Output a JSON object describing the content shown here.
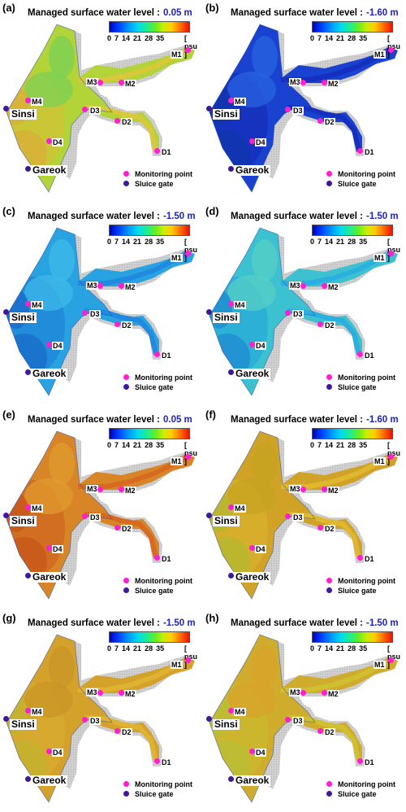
{
  "panel_title_prefix": "Managed surface water level :",
  "colorbar": {
    "ticks": [
      "0",
      "7",
      "14",
      "21",
      "28",
      "35"
    ],
    "unit": "[ psu ]",
    "colors": [
      "#0000c8",
      "#0099ff",
      "#22ee88",
      "#ccee00",
      "#ff7700",
      "#ee1100"
    ]
  },
  "labels": {
    "m1": "M1",
    "m2": "M2",
    "m3": "M3",
    "m4": "M4",
    "d1": "D1",
    "d2": "D2",
    "d3": "D3",
    "d4": "D4",
    "sinsi": "Sinsi",
    "gareok": "Gareok"
  },
  "legend": {
    "monitoring_point": "Monitoring point",
    "sluice_gate": "Sluice gate",
    "monitoring_color": "#ff1fd0",
    "sluice_color": "#3d1a9a"
  },
  "panels": [
    {
      "label": "(a)",
      "water_level": "0.05 m",
      "palette": [
        "#b8dc3a",
        "#d9c93a",
        "#7fd85a",
        "#e0b33a"
      ]
    },
    {
      "label": "(b)",
      "water_level": "-1.60 m",
      "palette": [
        "#1a44d8",
        "#1530c0",
        "#2a66e8",
        "#1238b0"
      ]
    },
    {
      "label": "(c)",
      "water_level": "-1.50 m",
      "palette": [
        "#2aa8e8",
        "#1f8ae0",
        "#40c0f0",
        "#1a70d0"
      ]
    },
    {
      "label": "(d)",
      "water_level": "-1.50 m",
      "palette": [
        "#3ec8d8",
        "#2ab0e0",
        "#5ad6cc",
        "#2090d8"
      ]
    },
    {
      "label": "(e)",
      "water_level": "0.05 m",
      "palette": [
        "#e08a2a",
        "#d86a20",
        "#e8a030",
        "#cc5a1a"
      ]
    },
    {
      "label": "(f)",
      "water_level": "-1.60 m",
      "palette": [
        "#d8a828",
        "#e0b830",
        "#ccaa22",
        "#b8c030"
      ]
    },
    {
      "label": "(g)",
      "water_level": "-1.50 m",
      "palette": [
        "#dca82c",
        "#e0b232",
        "#d09a28",
        "#c8b830"
      ]
    },
    {
      "label": "(h)",
      "water_level": "-1.50 m",
      "palette": [
        "#d8b22e",
        "#d0c030",
        "#e0a82c",
        "#c0c638"
      ]
    }
  ]
}
